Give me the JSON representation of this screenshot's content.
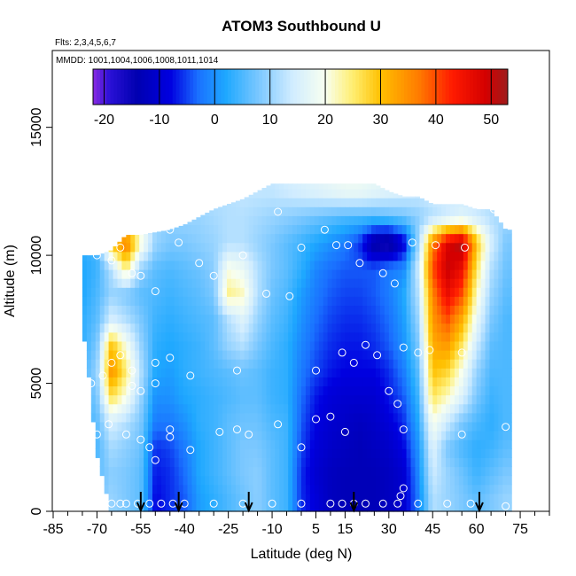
{
  "chart_data": {
    "type": "heatmap",
    "title": "ATOM3 Southbound U",
    "flights_note": "Flts: 2,3,4,5,6,7",
    "dates_note": "MMDD: 1001,1004,1006,1008,1011,1014",
    "xlabel": "Latitude (deg N)",
    "ylabel": "Altitude (m)",
    "xlim": [
      -85,
      85
    ],
    "ylim": [
      0,
      18000
    ],
    "x_ticks": [
      -85,
      -70,
      -55,
      -40,
      -25,
      -10,
      5,
      15,
      30,
      45,
      60,
      75
    ],
    "y_ticks": [
      0,
      5000,
      10000,
      15000
    ],
    "colorbar": {
      "range": [
        -22,
        53
      ],
      "ticks": [
        -20,
        -10,
        0,
        10,
        20,
        30,
        40,
        50
      ],
      "stops": [
        {
          "v": -22,
          "c": "#8a2be2"
        },
        {
          "v": -19,
          "c": "#2a10d6"
        },
        {
          "v": -14,
          "c": "#0000b0"
        },
        {
          "v": -8,
          "c": "#0000e0"
        },
        {
          "v": -3,
          "c": "#1a70ff"
        },
        {
          "v": 2,
          "c": "#1ea8ff"
        },
        {
          "v": 8,
          "c": "#7cc8ff"
        },
        {
          "v": 14,
          "c": "#d0ecff"
        },
        {
          "v": 20,
          "c": "#f8fff0"
        },
        {
          "v": 25,
          "c": "#ffee70"
        },
        {
          "v": 30,
          "c": "#ffc000"
        },
        {
          "v": 37,
          "c": "#ff7a00"
        },
        {
          "v": 43,
          "c": "#ff1a00"
        },
        {
          "v": 49,
          "c": "#d40000"
        },
        {
          "v": 53,
          "c": "#9e1c1c"
        }
      ]
    },
    "grid": false,
    "field": {
      "lat": [
        -75,
        -70,
        -65,
        -60,
        -55,
        -50,
        -45,
        -40,
        -35,
        -30,
        -25,
        -20,
        -15,
        -10,
        -5,
        0,
        5,
        10,
        15,
        20,
        25,
        30,
        35,
        40,
        45,
        50,
        55,
        60,
        65,
        70
      ],
      "alt": [
        500,
        1500,
        2500,
        3500,
        4500,
        5500,
        6500,
        7500,
        8500,
        9500,
        10500,
        11500,
        12500
      ],
      "u": [
        [
          6,
          7,
          10,
          8,
          6,
          -8,
          -6,
          -4,
          1,
          3,
          5,
          7,
          9,
          6,
          4,
          -6,
          -9,
          -12,
          -13,
          -13,
          -13,
          -12,
          -10,
          -2,
          12,
          10,
          8,
          6,
          8,
          10
        ],
        [
          5,
          6,
          9,
          8,
          6,
          -7,
          -6,
          -3,
          2,
          4,
          6,
          8,
          9,
          6,
          4,
          -6,
          -10,
          -12,
          -13,
          -13,
          -13,
          -12,
          -10,
          -1,
          14,
          10,
          7,
          4,
          6,
          8
        ],
        [
          4,
          5,
          11,
          9,
          7,
          -6,
          -5,
          -2,
          2,
          4,
          6,
          8,
          8,
          6,
          4,
          -5,
          -9,
          -11,
          -12,
          -13,
          -12,
          -11,
          -8,
          0,
          16,
          8,
          5,
          3,
          4,
          6
        ],
        [
          4,
          6,
          15,
          12,
          8,
          -2,
          -2,
          0,
          3,
          4,
          6,
          7,
          7,
          5,
          4,
          -4,
          -8,
          -10,
          -11,
          -12,
          -11,
          -9,
          -6,
          2,
          20,
          14,
          8,
          5,
          3,
          5
        ],
        [
          4,
          8,
          27,
          20,
          10,
          0,
          0,
          2,
          3,
          4,
          5,
          6,
          6,
          4,
          3,
          -3,
          -7,
          -9,
          -10,
          -10,
          -10,
          -7,
          -4,
          4,
          26,
          22,
          16,
          8,
          4,
          5
        ],
        [
          4,
          10,
          35,
          25,
          12,
          2,
          1,
          3,
          4,
          5,
          6,
          7,
          6,
          4,
          3,
          -2,
          -5,
          -7,
          -8,
          -8,
          -8,
          -6,
          -2,
          6,
          30,
          28,
          20,
          10,
          5,
          5
        ],
        [
          3,
          8,
          30,
          20,
          10,
          3,
          2,
          3,
          4,
          6,
          10,
          12,
          8,
          5,
          3,
          -1,
          -4,
          -6,
          -7,
          -7,
          -6,
          -4,
          0,
          8,
          32,
          34,
          26,
          14,
          6,
          5
        ],
        [
          3,
          6,
          15,
          12,
          8,
          4,
          3,
          4,
          5,
          6,
          12,
          16,
          10,
          6,
          4,
          0,
          -3,
          -5,
          -6,
          -6,
          -5,
          -3,
          1,
          10,
          34,
          40,
          32,
          18,
          8,
          5
        ],
        [
          2,
          5,
          10,
          8,
          6,
          5,
          4,
          5,
          6,
          8,
          24,
          22,
          12,
          7,
          5,
          1,
          -2,
          -4,
          -5,
          -5,
          -4,
          -2,
          2,
          12,
          36,
          46,
          40,
          22,
          10,
          6
        ],
        [
          2,
          4,
          12,
          25,
          10,
          6,
          5,
          6,
          7,
          9,
          20,
          18,
          12,
          8,
          6,
          3,
          -1,
          -3,
          -4,
          -4,
          -4,
          -2,
          -1,
          14,
          40,
          50,
          46,
          26,
          12,
          7
        ],
        [
          3,
          5,
          30,
          38,
          22,
          10,
          8,
          8,
          9,
          10,
          12,
          12,
          10,
          8,
          6,
          4,
          2,
          0,
          -2,
          -6,
          -16,
          -18,
          -10,
          10,
          36,
          48,
          52,
          30,
          15,
          8
        ],
        [
          5,
          7,
          12,
          18,
          14,
          10,
          9,
          10,
          10,
          11,
          12,
          12,
          11,
          10,
          9,
          8,
          7,
          6,
          5,
          5,
          5,
          6,
          7,
          9,
          12,
          14,
          16,
          14,
          12,
          10
        ],
        [
          6,
          7,
          9,
          10,
          10,
          10,
          10,
          11,
          11,
          12,
          12,
          13,
          13,
          13,
          14,
          15,
          16,
          17,
          18,
          18,
          17,
          16,
          15,
          14,
          14,
          14,
          14,
          13,
          12,
          11
        ]
      ],
      "altitude_top_by_lat": [
        10000,
        10000,
        10200,
        10800,
        10800,
        10900,
        11000,
        11200,
        11500,
        11800,
        12000,
        12200,
        12500,
        12800,
        12800,
        12800,
        12800,
        12800,
        12800,
        12800,
        12800,
        12500,
        12300,
        12300,
        12000,
        12000,
        12000,
        11800,
        11800,
        11000
      ],
      "altitude_bottom_by_lat": [
        7500,
        2500,
        0,
        0,
        0,
        0,
        0,
        0,
        0,
        0,
        0,
        0,
        0,
        0,
        0,
        0,
        0,
        0,
        0,
        0,
        0,
        0,
        0,
        0,
        0,
        0,
        0,
        0,
        0,
        0
      ]
    },
    "observation_points": [
      [
        -70,
        10000
      ],
      [
        -65,
        9800
      ],
      [
        -62,
        10300
      ],
      [
        -58,
        9300
      ],
      [
        -55,
        9200
      ],
      [
        -50,
        8600
      ],
      [
        -45,
        11000
      ],
      [
        -42,
        10500
      ],
      [
        -35,
        9700
      ],
      [
        -30,
        9200
      ],
      [
        -20,
        10000
      ],
      [
        -12,
        8500
      ],
      [
        -8,
        11700
      ],
      [
        -4,
        8400
      ],
      [
        0,
        10300
      ],
      [
        8,
        11000
      ],
      [
        12,
        10400
      ],
      [
        16,
        10400
      ],
      [
        20,
        9700
      ],
      [
        28,
        9300
      ],
      [
        32,
        8900
      ],
      [
        38,
        10500
      ],
      [
        46,
        10400
      ],
      [
        56,
        10300
      ],
      [
        66,
        11800
      ],
      [
        -65,
        5800
      ],
      [
        -62,
        6100
      ],
      [
        -58,
        5500
      ],
      [
        -50,
        5800
      ],
      [
        -45,
        6000
      ],
      [
        -38,
        5300
      ],
      [
        -22,
        5500
      ],
      [
        5,
        5500
      ],
      [
        14,
        6200
      ],
      [
        18,
        5800
      ],
      [
        22,
        6500
      ],
      [
        26,
        6100
      ],
      [
        30,
        4700
      ],
      [
        33,
        4200
      ],
      [
        35,
        6400
      ],
      [
        40,
        6200
      ],
      [
        44,
        6300
      ],
      [
        55,
        6200
      ],
      [
        -72,
        5000
      ],
      [
        -68,
        5300
      ],
      [
        -58,
        4900
      ],
      [
        -55,
        4700
      ],
      [
        -50,
        5000
      ],
      [
        -70,
        3000
      ],
      [
        -66,
        3400
      ],
      [
        -60,
        3000
      ],
      [
        -55,
        2800
      ],
      [
        -52,
        2500
      ],
      [
        -50,
        2000
      ],
      [
        -45,
        3200
      ],
      [
        -45,
        2900
      ],
      [
        -38,
        2400
      ],
      [
        -28,
        3100
      ],
      [
        -22,
        3200
      ],
      [
        -18,
        3000
      ],
      [
        -8,
        3400
      ],
      [
        0,
        2500
      ],
      [
        5,
        3600
      ],
      [
        10,
        3700
      ],
      [
        15,
        3100
      ],
      [
        35,
        3200
      ],
      [
        55,
        3000
      ],
      [
        70,
        3300
      ],
      [
        -72,
        300
      ],
      [
        -68,
        300
      ],
      [
        -65,
        300
      ],
      [
        -62,
        300
      ],
      [
        -60,
        300
      ],
      [
        -56,
        300
      ],
      [
        -52,
        300
      ],
      [
        -48,
        300
      ],
      [
        -44,
        300
      ],
      [
        -40,
        300
      ],
      [
        -30,
        300
      ],
      [
        -20,
        300
      ],
      [
        -10,
        300
      ],
      [
        0,
        300
      ],
      [
        10,
        300
      ],
      [
        14,
        300
      ],
      [
        18,
        300
      ],
      [
        22,
        300
      ],
      [
        28,
        300
      ],
      [
        33,
        300
      ],
      [
        34,
        600
      ],
      [
        35,
        900
      ],
      [
        40,
        300
      ],
      [
        50,
        300
      ],
      [
        58,
        300
      ],
      [
        70,
        200
      ]
    ],
    "arrow_latitudes": [
      -55,
      -42,
      -18,
      18,
      61
    ]
  }
}
